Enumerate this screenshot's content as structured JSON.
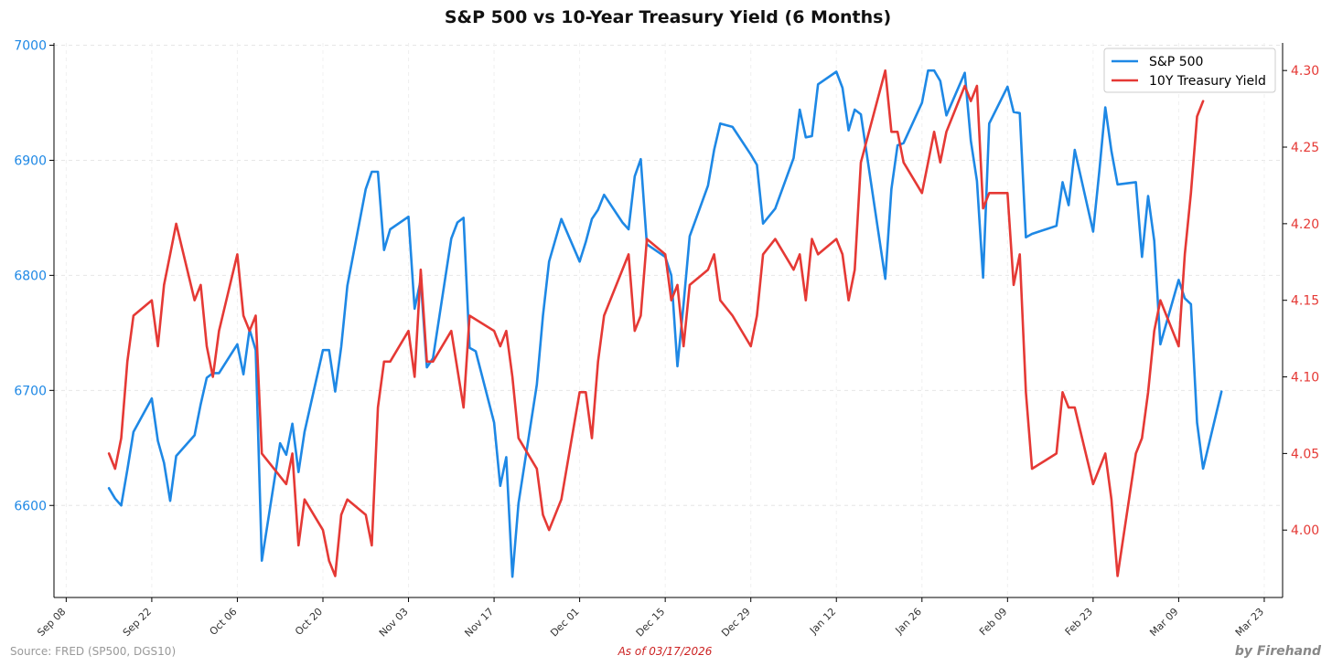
{
  "chart_data": {
    "type": "line",
    "title": "S&P 500 vs 10-Year Treasury Yield (6 Months)",
    "x_axis": {
      "type": "date",
      "range": [
        "2025-09-06",
        "2026-03-26"
      ],
      "ticks": [
        {
          "date": "2025-09-08",
          "label": "Sep 08"
        },
        {
          "date": "2025-09-22",
          "label": "Sep 22"
        },
        {
          "date": "2025-10-06",
          "label": "Oct 06"
        },
        {
          "date": "2025-10-20",
          "label": "Oct 20"
        },
        {
          "date": "2025-11-03",
          "label": "Nov 03"
        },
        {
          "date": "2025-11-17",
          "label": "Nov 17"
        },
        {
          "date": "2025-12-01",
          "label": "Dec 01"
        },
        {
          "date": "2025-12-15",
          "label": "Dec 15"
        },
        {
          "date": "2025-12-29",
          "label": "Dec 29"
        },
        {
          "date": "2026-01-12",
          "label": "Jan 12"
        },
        {
          "date": "2026-01-26",
          "label": "Jan 26"
        },
        {
          "date": "2026-02-09",
          "label": "Feb 09"
        },
        {
          "date": "2026-02-23",
          "label": "Feb 23"
        },
        {
          "date": "2026-03-09",
          "label": "Mar 09"
        },
        {
          "date": "2026-03-23",
          "label": "Mar 23"
        }
      ]
    },
    "y_left": {
      "label": "",
      "range": [
        6520,
        7002
      ],
      "ticks": [
        6600,
        6700,
        6800,
        6900,
        7000
      ],
      "color": "#1e88e5"
    },
    "y_right": {
      "label": "",
      "range": [
        3.956,
        4.318
      ],
      "ticks": [
        4.0,
        4.05,
        4.1,
        4.15,
        4.2,
        4.25,
        4.3
      ],
      "color": "#e53935"
    },
    "grid": true,
    "legend": {
      "position": "top-right"
    },
    "series": [
      {
        "name": "S&P 500",
        "axis": "left",
        "color": "#1e88e5",
        "points": [
          [
            "2025-09-15",
            6615
          ],
          [
            "2025-09-16",
            6606
          ],
          [
            "2025-09-17",
            6600
          ],
          [
            "2025-09-18",
            6631
          ],
          [
            "2025-09-19",
            6664
          ],
          [
            "2025-09-22",
            6693
          ],
          [
            "2025-09-23",
            6656
          ],
          [
            "2025-09-24",
            6637
          ],
          [
            "2025-09-25",
            6604
          ],
          [
            "2025-09-26",
            6643
          ],
          [
            "2025-09-29",
            6661
          ],
          [
            "2025-09-30",
            6688
          ],
          [
            "2025-10-01",
            6711
          ],
          [
            "2025-10-02",
            6715
          ],
          [
            "2025-10-03",
            6715
          ],
          [
            "2025-10-06",
            6740
          ],
          [
            "2025-10-07",
            6714
          ],
          [
            "2025-10-08",
            6753
          ],
          [
            "2025-10-09",
            6735
          ],
          [
            "2025-10-10",
            6552
          ],
          [
            "2025-10-13",
            6654
          ],
          [
            "2025-10-14",
            6644
          ],
          [
            "2025-10-15",
            6671
          ],
          [
            "2025-10-16",
            6629
          ],
          [
            "2025-10-17",
            6664
          ],
          [
            "2025-10-20",
            6735
          ],
          [
            "2025-10-21",
            6735
          ],
          [
            "2025-10-22",
            6699
          ],
          [
            "2025-10-23",
            6738
          ],
          [
            "2025-10-24",
            6791
          ],
          [
            "2025-10-27",
            6875
          ],
          [
            "2025-10-28",
            6890
          ],
          [
            "2025-10-29",
            6890
          ],
          [
            "2025-10-30",
            6822
          ],
          [
            "2025-10-31",
            6840
          ],
          [
            "2025-11-03",
            6851
          ],
          [
            "2025-11-04",
            6771
          ],
          [
            "2025-11-05",
            6796
          ],
          [
            "2025-11-06",
            6720
          ],
          [
            "2025-11-07",
            6728
          ],
          [
            "2025-11-10",
            6832
          ],
          [
            "2025-11-11",
            6846
          ],
          [
            "2025-11-12",
            6850
          ],
          [
            "2025-11-13",
            6737
          ],
          [
            "2025-11-14",
            6734
          ],
          [
            "2025-11-17",
            6672
          ],
          [
            "2025-11-18",
            6617
          ],
          [
            "2025-11-19",
            6642
          ],
          [
            "2025-11-20",
            6538
          ],
          [
            "2025-11-21",
            6602
          ],
          [
            "2025-11-24",
            6705
          ],
          [
            "2025-11-25",
            6765
          ],
          [
            "2025-11-26",
            6812
          ],
          [
            "2025-11-28",
            6849
          ],
          [
            "2025-12-01",
            6812
          ],
          [
            "2025-12-02",
            6829
          ],
          [
            "2025-12-03",
            6849
          ],
          [
            "2025-12-04",
            6857
          ],
          [
            "2025-12-05",
            6870
          ],
          [
            "2025-12-08",
            6846
          ],
          [
            "2025-12-09",
            6840
          ],
          [
            "2025-12-10",
            6886
          ],
          [
            "2025-12-11",
            6901
          ],
          [
            "2025-12-12",
            6827
          ],
          [
            "2025-12-15",
            6816
          ],
          [
            "2025-12-16",
            6800
          ],
          [
            "2025-12-17",
            6721
          ],
          [
            "2025-12-18",
            6775
          ],
          [
            "2025-12-19",
            6834
          ],
          [
            "2025-12-22",
            6878
          ],
          [
            "2025-12-23",
            6909
          ],
          [
            "2025-12-24",
            6932
          ],
          [
            "2025-12-26",
            6929
          ],
          [
            "2025-12-29",
            6905
          ],
          [
            "2025-12-30",
            6896
          ],
          [
            "2025-12-31",
            6845
          ],
          [
            "2026-01-02",
            6858
          ],
          [
            "2026-01-05",
            6902
          ],
          [
            "2026-01-06",
            6944
          ],
          [
            "2026-01-07",
            6920
          ],
          [
            "2026-01-08",
            6921
          ],
          [
            "2026-01-09",
            6966
          ],
          [
            "2026-01-12",
            6977
          ],
          [
            "2026-01-13",
            6963
          ],
          [
            "2026-01-14",
            6926
          ],
          [
            "2026-01-15",
            6944
          ],
          [
            "2026-01-16",
            6940
          ],
          [
            "2026-01-20",
            6797
          ],
          [
            "2026-01-21",
            6875
          ],
          [
            "2026-01-22",
            6913
          ],
          [
            "2026-01-23",
            6915
          ],
          [
            "2026-01-26",
            6950
          ],
          [
            "2026-01-27",
            6978
          ],
          [
            "2026-01-28",
            6978
          ],
          [
            "2026-01-29",
            6969
          ],
          [
            "2026-01-30",
            6939
          ],
          [
            "2026-02-02",
            6976
          ],
          [
            "2026-02-03",
            6917
          ],
          [
            "2026-02-04",
            6882
          ],
          [
            "2026-02-05",
            6798
          ],
          [
            "2026-02-06",
            6932
          ],
          [
            "2026-02-09",
            6964
          ],
          [
            "2026-02-10",
            6942
          ],
          [
            "2026-02-11",
            6941
          ],
          [
            "2026-02-12",
            6833
          ],
          [
            "2026-02-13",
            6836
          ],
          [
            "2026-02-17",
            6843
          ],
          [
            "2026-02-18",
            6881
          ],
          [
            "2026-02-19",
            6861
          ],
          [
            "2026-02-20",
            6909
          ],
          [
            "2026-02-23",
            6838
          ],
          [
            "2026-02-24",
            6890
          ],
          [
            "2026-02-25",
            6946
          ],
          [
            "2026-02-26",
            6908
          ],
          [
            "2026-02-27",
            6879
          ],
          [
            "2026-03-02",
            6881
          ],
          [
            "2026-03-03",
            6816
          ],
          [
            "2026-03-04",
            6869
          ],
          [
            "2026-03-05",
            6830
          ],
          [
            "2026-03-06",
            6740
          ],
          [
            "2026-03-09",
            6796
          ],
          [
            "2026-03-10",
            6780
          ],
          [
            "2026-03-11",
            6775
          ],
          [
            "2026-03-12",
            6672
          ],
          [
            "2026-03-13",
            6632
          ],
          [
            "2026-03-16",
            6699
          ]
        ]
      },
      {
        "name": "10Y Treasury Yield",
        "axis": "right",
        "color": "#e53935",
        "points": [
          [
            "2025-09-15",
            4.05
          ],
          [
            "2025-09-16",
            4.04
          ],
          [
            "2025-09-17",
            4.06
          ],
          [
            "2025-09-18",
            4.11
          ],
          [
            "2025-09-19",
            4.14
          ],
          [
            "2025-09-22",
            4.15
          ],
          [
            "2025-09-23",
            4.12
          ],
          [
            "2025-09-24",
            4.16
          ],
          [
            "2025-09-25",
            4.18
          ],
          [
            "2025-09-26",
            4.2
          ],
          [
            "2025-09-29",
            4.15
          ],
          [
            "2025-09-30",
            4.16
          ],
          [
            "2025-10-01",
            4.12
          ],
          [
            "2025-10-02",
            4.1
          ],
          [
            "2025-10-03",
            4.13
          ],
          [
            "2025-10-06",
            4.18
          ],
          [
            "2025-10-07",
            4.14
          ],
          [
            "2025-10-08",
            4.13
          ],
          [
            "2025-10-09",
            4.14
          ],
          [
            "2025-10-10",
            4.05
          ],
          [
            "2025-10-14",
            4.03
          ],
          [
            "2025-10-15",
            4.05
          ],
          [
            "2025-10-16",
            3.99
          ],
          [
            "2025-10-17",
            4.02
          ],
          [
            "2025-10-20",
            4.0
          ],
          [
            "2025-10-21",
            3.98
          ],
          [
            "2025-10-22",
            3.97
          ],
          [
            "2025-10-23",
            4.01
          ],
          [
            "2025-10-24",
            4.02
          ],
          [
            "2025-10-27",
            4.01
          ],
          [
            "2025-10-28",
            3.99
          ],
          [
            "2025-10-29",
            4.08
          ],
          [
            "2025-10-30",
            4.11
          ],
          [
            "2025-10-31",
            4.11
          ],
          [
            "2025-11-03",
            4.13
          ],
          [
            "2025-11-04",
            4.1
          ],
          [
            "2025-11-05",
            4.17
          ],
          [
            "2025-11-06",
            4.11
          ],
          [
            "2025-11-07",
            4.11
          ],
          [
            "2025-11-10",
            4.13
          ],
          [
            "2025-11-12",
            4.08
          ],
          [
            "2025-11-13",
            4.14
          ],
          [
            "2025-11-17",
            4.13
          ],
          [
            "2025-11-18",
            4.12
          ],
          [
            "2025-11-19",
            4.13
          ],
          [
            "2025-11-20",
            4.1
          ],
          [
            "2025-11-21",
            4.06
          ],
          [
            "2025-11-24",
            4.04
          ],
          [
            "2025-11-25",
            4.01
          ],
          [
            "2025-11-26",
            4.0
          ],
          [
            "2025-11-28",
            4.02
          ],
          [
            "2025-12-01",
            4.09
          ],
          [
            "2025-12-02",
            4.09
          ],
          [
            "2025-12-03",
            4.06
          ],
          [
            "2025-12-04",
            4.11
          ],
          [
            "2025-12-05",
            4.14
          ],
          [
            "2025-12-09",
            4.18
          ],
          [
            "2025-12-10",
            4.13
          ],
          [
            "2025-12-11",
            4.14
          ],
          [
            "2025-12-12",
            4.19
          ],
          [
            "2025-12-15",
            4.18
          ],
          [
            "2025-12-16",
            4.15
          ],
          [
            "2025-12-17",
            4.16
          ],
          [
            "2025-12-18",
            4.12
          ],
          [
            "2025-12-19",
            4.16
          ],
          [
            "2025-12-22",
            4.17
          ],
          [
            "2025-12-23",
            4.18
          ],
          [
            "2025-12-24",
            4.15
          ],
          [
            "2025-12-26",
            4.14
          ],
          [
            "2025-12-29",
            4.12
          ],
          [
            "2025-12-30",
            4.14
          ],
          [
            "2025-12-31",
            4.18
          ],
          [
            "2026-01-02",
            4.19
          ],
          [
            "2026-01-05",
            4.17
          ],
          [
            "2026-01-06",
            4.18
          ],
          [
            "2026-01-07",
            4.15
          ],
          [
            "2026-01-08",
            4.19
          ],
          [
            "2026-01-09",
            4.18
          ],
          [
            "2026-01-12",
            4.19
          ],
          [
            "2026-01-13",
            4.18
          ],
          [
            "2026-01-14",
            4.15
          ],
          [
            "2026-01-15",
            4.17
          ],
          [
            "2026-01-16",
            4.24
          ],
          [
            "2026-01-20",
            4.3
          ],
          [
            "2026-01-21",
            4.26
          ],
          [
            "2026-01-22",
            4.26
          ],
          [
            "2026-01-23",
            4.24
          ],
          [
            "2026-01-26",
            4.22
          ],
          [
            "2026-01-27",
            4.24
          ],
          [
            "2026-01-28",
            4.26
          ],
          [
            "2026-01-29",
            4.24
          ],
          [
            "2026-01-30",
            4.26
          ],
          [
            "2026-02-02",
            4.29
          ],
          [
            "2026-02-03",
            4.28
          ],
          [
            "2026-02-04",
            4.29
          ],
          [
            "2026-02-05",
            4.21
          ],
          [
            "2026-02-06",
            4.22
          ],
          [
            "2026-02-09",
            4.22
          ],
          [
            "2026-02-10",
            4.16
          ],
          [
            "2026-02-11",
            4.18
          ],
          [
            "2026-02-12",
            4.09
          ],
          [
            "2026-02-13",
            4.04
          ],
          [
            "2026-02-17",
            4.05
          ],
          [
            "2026-02-18",
            4.09
          ],
          [
            "2026-02-19",
            4.08
          ],
          [
            "2026-02-20",
            4.08
          ],
          [
            "2026-02-23",
            4.03
          ],
          [
            "2026-02-24",
            4.04
          ],
          [
            "2026-02-25",
            4.05
          ],
          [
            "2026-02-26",
            4.02
          ],
          [
            "2026-02-27",
            3.97
          ],
          [
            "2026-03-02",
            4.05
          ],
          [
            "2026-03-03",
            4.06
          ],
          [
            "2026-03-04",
            4.09
          ],
          [
            "2026-03-05",
            4.13
          ],
          [
            "2026-03-06",
            4.15
          ],
          [
            "2026-03-09",
            4.12
          ],
          [
            "2026-03-10",
            4.18
          ],
          [
            "2026-03-11",
            4.22
          ],
          [
            "2026-03-12",
            4.27
          ],
          [
            "2026-03-13",
            4.28
          ]
        ]
      }
    ]
  },
  "footer": {
    "source": "Source: FRED (SP500, DGS10)",
    "as_of": "As of 03/17/2026",
    "brand": "by Firehand"
  }
}
